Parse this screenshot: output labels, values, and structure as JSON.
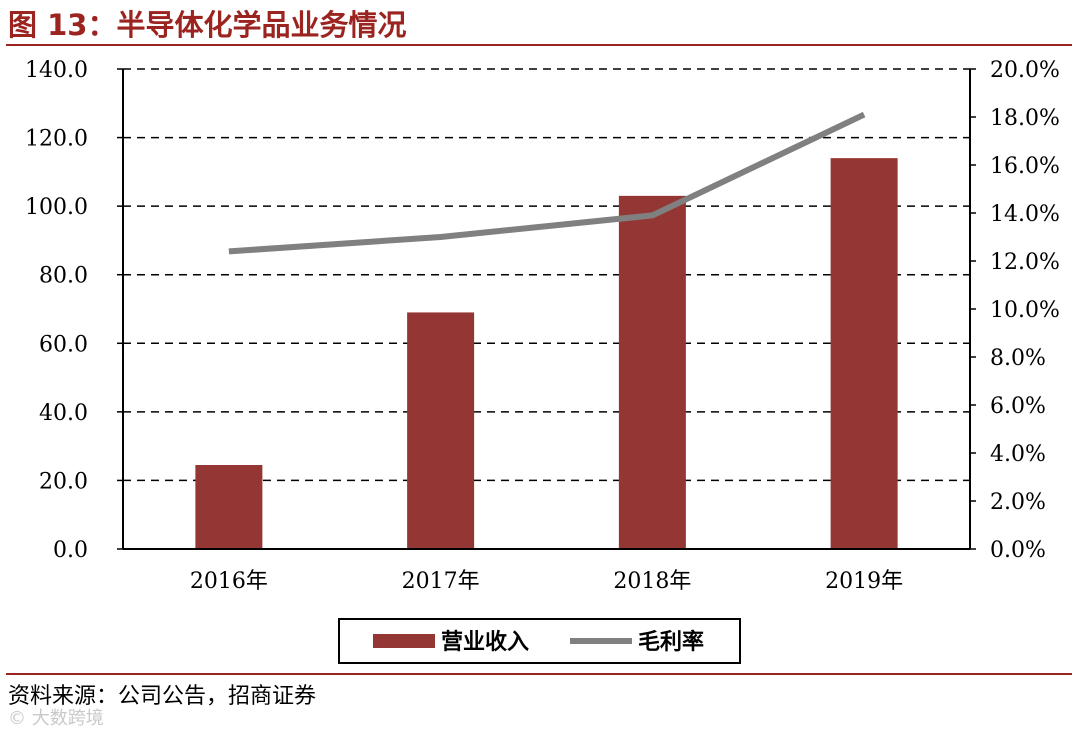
{
  "header": {
    "title": "图 13：半导体化学品业务情况"
  },
  "chart_data": {
    "type": "bar",
    "categories": [
      "2016年",
      "2017年",
      "2018年",
      "2019年"
    ],
    "series": [
      {
        "name": "营业收入",
        "type": "bar",
        "axis": "left",
        "color": "#943634",
        "values": [
          24.5,
          69.0,
          103.0,
          114.0
        ]
      },
      {
        "name": "毛利率",
        "type": "line",
        "axis": "right",
        "color": "#808080",
        "values": [
          12.4,
          13.0,
          13.9,
          18.1
        ]
      }
    ],
    "left_axis": {
      "ylim": [
        0,
        140
      ],
      "ticks": [
        "0.0",
        "20.0",
        "40.0",
        "60.0",
        "80.0",
        "100.0",
        "120.0",
        "140.0"
      ]
    },
    "right_axis": {
      "ylim": [
        0,
        20
      ],
      "ticks": [
        "0.0%",
        "2.0%",
        "4.0%",
        "6.0%",
        "8.0%",
        "10.0%",
        "12.0%",
        "14.0%",
        "16.0%",
        "18.0%",
        "20.0%"
      ]
    },
    "grid": "dashed horizontal",
    "legend_position": "bottom-center"
  },
  "footer": {
    "source": "资料来源：公司公告，招商证券",
    "watermark": "© 大数跨境"
  }
}
